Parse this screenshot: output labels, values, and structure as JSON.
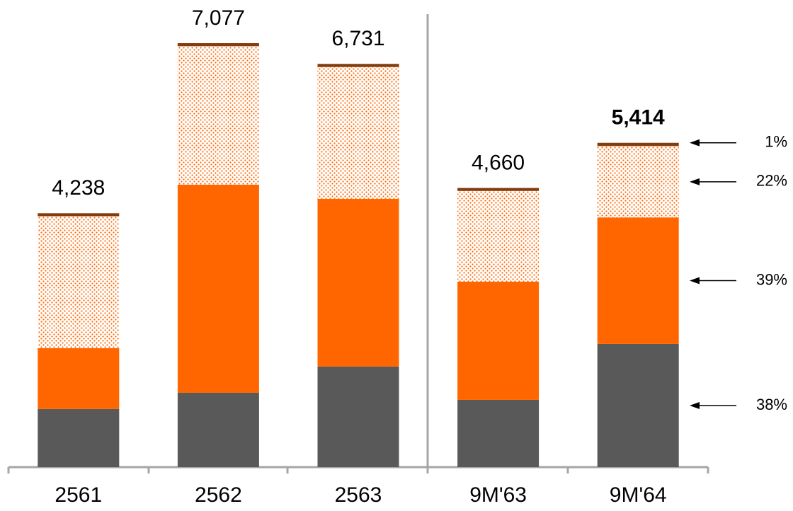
{
  "chart_data": {
    "type": "stacked_bar",
    "categories": [
      "2561",
      "2562",
      "2563",
      "9M'63",
      "9M'64"
    ],
    "series": [
      {
        "color": "#595959",
        "values": [
          970,
          1241,
          1679,
          1123,
          2057
        ]
      },
      {
        "color": "#ff6600",
        "values": [
          1017,
          3475,
          2801,
          1974,
          2111
        ]
      },
      {
        "color": "#ff6600",
        "pattern": "dots",
        "values": [
          2201,
          2310,
          2199,
          1513,
          1191
        ]
      },
      {
        "color": "#843c0c",
        "values": [
          50,
          51,
          52,
          50,
          55
        ]
      }
    ],
    "totals": [
      4238,
      7077,
      6731,
      4660,
      5414
    ],
    "total_labels": [
      "4,238",
      "7,077",
      "6,731",
      "4,660",
      "5,414"
    ],
    "bold_total": 4,
    "annotations": [
      "1%",
      "22%",
      "39%",
      "38%"
    ]
  }
}
